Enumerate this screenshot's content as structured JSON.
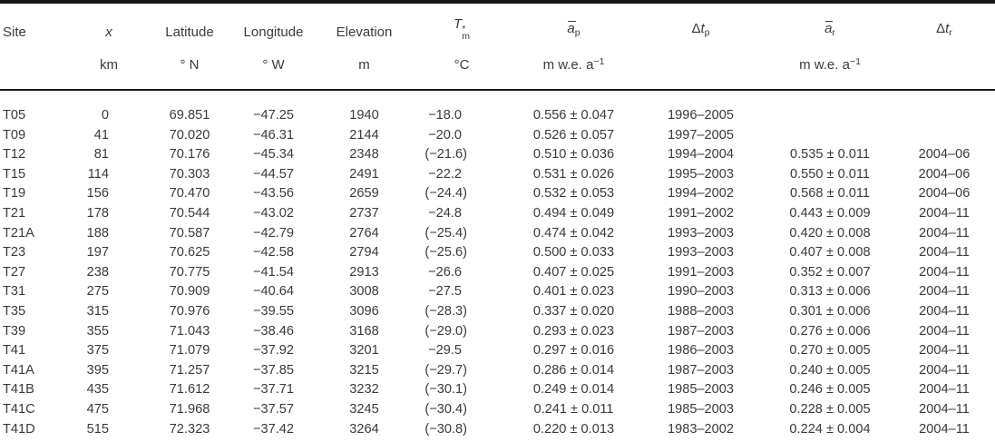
{
  "colors": {
    "text": "#3a3a3a",
    "rule": "#161616",
    "background": "#ffffff"
  },
  "table": {
    "columns": [
      {
        "id": "site",
        "label": "Site",
        "unit": ""
      },
      {
        "id": "x",
        "label": "x",
        "unit": "km"
      },
      {
        "id": "latitude",
        "label": "Latitude",
        "unit": "° N"
      },
      {
        "id": "longitude",
        "label": "Longitude",
        "unit": "° W"
      },
      {
        "id": "elevation",
        "label": "Elevation",
        "unit": "m"
      },
      {
        "id": "tm",
        "label_base": "T",
        "label_sup": "*",
        "label_sub": "m",
        "unit": "°C"
      },
      {
        "id": "ap",
        "label_base": "a",
        "label_sub": "p",
        "unit_base": "m w.e. a",
        "unit_sup": "−1"
      },
      {
        "id": "dtp",
        "label_delta": "Δ",
        "label_var": "t",
        "label_sub": "p",
        "unit": ""
      },
      {
        "id": "ar",
        "label_base": "a",
        "label_sub": "r",
        "unit_base": "m w.e. a",
        "unit_sup": "−1"
      },
      {
        "id": "dtr",
        "label_delta": "Δ",
        "label_var": "t",
        "label_sub": "r",
        "unit": ""
      }
    ],
    "rows": [
      [
        "T05",
        "0",
        "69.851",
        "−47.25",
        "1940",
        "−18.0",
        "0.556 ± 0.047",
        "1996–2005",
        "",
        ""
      ],
      [
        "T09",
        "41",
        "70.020",
        "−46.31",
        "2144",
        "−20.0",
        "0.526 ± 0.057",
        "1997–2005",
        "",
        ""
      ],
      [
        "T12",
        "81",
        "70.176",
        "−45.34",
        "2348",
        "(−21.6)",
        "0.510 ± 0.036",
        "1994–2004",
        "0.535 ± 0.011",
        "2004–06"
      ],
      [
        "T15",
        "114",
        "70.303",
        "−44.57",
        "2491",
        "−22.2",
        "0.531 ± 0.026",
        "1995–2003",
        "0.550 ± 0.011",
        "2004–06"
      ],
      [
        "T19",
        "156",
        "70.470",
        "−43.56",
        "2659",
        "(−24.4)",
        "0.532 ± 0.053",
        "1994–2002",
        "0.568 ± 0.011",
        "2004–06"
      ],
      [
        "T21",
        "178",
        "70.544",
        "−43.02",
        "2737",
        "−24.8",
        "0.494 ± 0.049",
        "1991–2002",
        "0.443 ± 0.009",
        "2004–11"
      ],
      [
        "T21A",
        "188",
        "70.587",
        "−42.79",
        "2764",
        "(−25.4)",
        "0.474 ± 0.042",
        "1993–2003",
        "0.420 ± 0.008",
        "2004–11"
      ],
      [
        "T23",
        "197",
        "70.625",
        "−42.58",
        "2794",
        "(−25.6)",
        "0.500 ± 0.033",
        "1993–2003",
        "0.407 ± 0.008",
        "2004–11"
      ],
      [
        "T27",
        "238",
        "70.775",
        "−41.54",
        "2913",
        "−26.6",
        "0.407 ± 0.025",
        "1991–2003",
        "0.352 ± 0.007",
        "2004–11"
      ],
      [
        "T31",
        "275",
        "70.909",
        "−40.64",
        "3008",
        "−27.5",
        "0.401 ± 0.023",
        "1990–2003",
        "0.313 ± 0.006",
        "2004–11"
      ],
      [
        "T35",
        "315",
        "70.976",
        "−39.55",
        "3096",
        "(−28.3)",
        "0.337 ± 0.020",
        "1988–2003",
        "0.301 ± 0.006",
        "2004–11"
      ],
      [
        "T39",
        "355",
        "71.043",
        "−38.46",
        "3168",
        "(−29.0)",
        "0.293 ± 0.023",
        "1987–2003",
        "0.276 ± 0.006",
        "2004–11"
      ],
      [
        "T41",
        "375",
        "71.079",
        "−37.92",
        "3201",
        "−29.5",
        "0.297 ± 0.016",
        "1986–2003",
        "0.270 ± 0.005",
        "2004–11"
      ],
      [
        "T41A",
        "395",
        "71.257",
        "−37.85",
        "3215",
        "(−29.7)",
        "0.286 ± 0.014",
        "1987–2003",
        "0.240 ± 0.005",
        "2004–11"
      ],
      [
        "T41B",
        "435",
        "71.612",
        "−37.71",
        "3232",
        "(−30.1)",
        "0.249 ± 0.014",
        "1985–2003",
        "0.246 ± 0.005",
        "2004–11"
      ],
      [
        "T41C",
        "475",
        "71.968",
        "−37.57",
        "3245",
        "(−30.4)",
        "0.241 ± 0.011",
        "1985–2003",
        "0.228 ± 0.005",
        "2004–11"
      ],
      [
        "T41D",
        "515",
        "72.323",
        "−37.42",
        "3264",
        "(−30.8)",
        "0.220 ± 0.013",
        "1983–2002",
        "0.224 ± 0.004",
        "2004–11"
      ]
    ]
  }
}
